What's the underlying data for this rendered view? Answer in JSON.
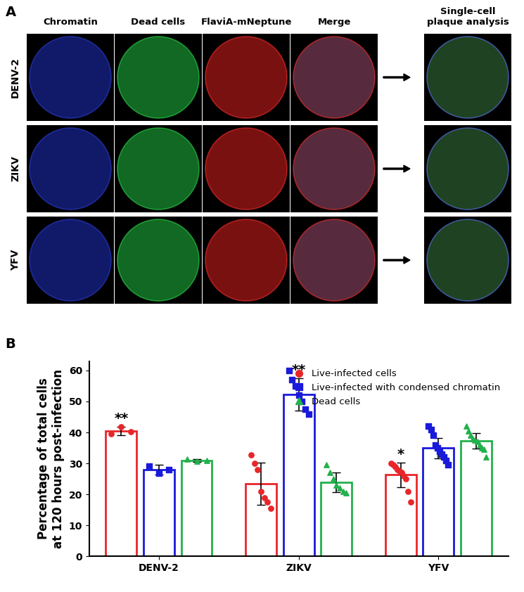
{
  "panel_a": {
    "label": "A",
    "columns": [
      "Chromatin",
      "Dead cells",
      "FlaviA-mNeptune",
      "Merge",
      "Single-cell\nplaque analysis"
    ],
    "rows": [
      "DENV-2",
      "ZIKV",
      "YFV"
    ]
  },
  "chart_data": {
    "label": "B",
    "type": "bar",
    "ylabel": "Percentage of total cells\nat 120 hours post-infection",
    "categories": [
      "DENV-2",
      "ZIKV",
      "YFV"
    ],
    "ylim": [
      0,
      63
    ],
    "yticks": [
      0,
      10,
      20,
      30,
      40,
      50,
      60
    ],
    "legend": "upper right",
    "series": [
      {
        "name": "Live-infected cells",
        "color": "#e8262a",
        "marker": "circle",
        "values": [
          40.5,
          23.5,
          26.3
        ],
        "errors": [
          1.3,
          6.8,
          4.0
        ],
        "points": [
          [
            39.5,
            41.8,
            40.2
          ],
          [
            32.8,
            30.0,
            28.0,
            21.0,
            19.0,
            17.5,
            15.5
          ],
          [
            30.0,
            29.5,
            29.0,
            28.0,
            27.5,
            27.0,
            26.0,
            25.0,
            21.0,
            17.5
          ]
        ]
      },
      {
        "name": "Live-infected with condensed chromatin",
        "color": "#1a1adb",
        "marker": "square",
        "values": [
          28.0,
          52.2,
          35.0
        ],
        "errors": [
          1.5,
          5.2,
          3.3
        ],
        "points": [
          [
            29.2,
            26.8,
            28.1
          ],
          [
            60.0,
            57.0,
            55.0,
            52.0,
            50.0,
            47.5,
            46.0
          ],
          [
            42.0,
            41.0,
            39.0,
            36.0,
            35.0,
            34.0,
            33.0,
            32.0,
            31.0,
            29.5
          ]
        ]
      },
      {
        "name": "Dead cells",
        "color": "#22b14c",
        "marker": "triangle",
        "values": [
          31.0,
          24.0,
          37.3
        ],
        "errors": [
          0.5,
          3.2,
          2.6
        ],
        "points": [
          [
            31.3,
            30.8,
            31.0
          ],
          [
            29.5,
            27.0,
            25.0,
            23.0,
            22.0,
            21.0,
            20.5
          ],
          [
            42.0,
            40.5,
            39.0,
            38.0,
            37.5,
            37.0,
            36.0,
            35.0,
            34.5,
            32.0
          ]
        ]
      }
    ],
    "annotations": [
      {
        "category": "DENV-2",
        "series": "Live-infected cells",
        "text": "**"
      },
      {
        "category": "ZIKV",
        "series": "Live-infected with condensed chromatin",
        "text": "**"
      },
      {
        "category": "YFV",
        "series": "Live-infected cells",
        "text": "*"
      }
    ]
  }
}
